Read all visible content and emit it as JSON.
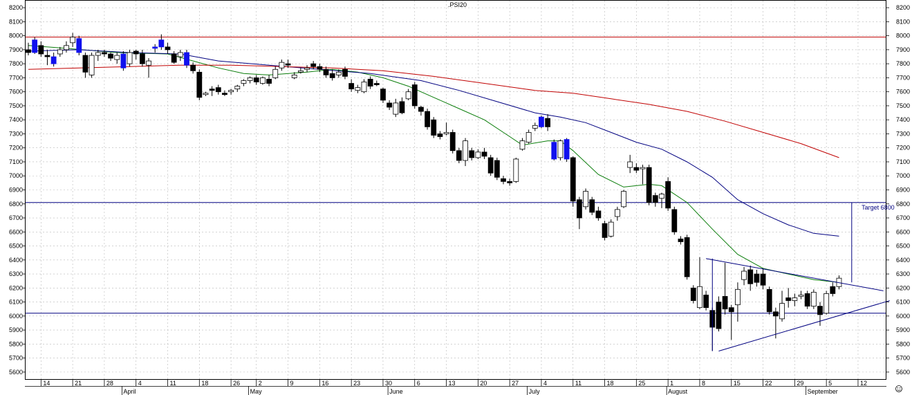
{
  "chart_data": {
    "type": "candlestick",
    "title": ".PSI20",
    "grid": true,
    "ylim": [
      5550,
      8250
    ],
    "y_ticks": [
      5600,
      5700,
      5800,
      5900,
      6000,
      6100,
      6200,
      6300,
      6400,
      6500,
      6600,
      6700,
      6800,
      6900,
      7000,
      7100,
      7200,
      7300,
      7400,
      7500,
      7600,
      7700,
      7800,
      7900,
      8000,
      8100,
      8200
    ],
    "x_tick_labels": [
      {
        "i": 2,
        "label": "14"
      },
      {
        "i": 7,
        "label": "21"
      },
      {
        "i": 12,
        "label": "28"
      },
      {
        "i": 17,
        "label": "4"
      },
      {
        "i": 22,
        "label": "11"
      },
      {
        "i": 27,
        "label": "18"
      },
      {
        "i": 32,
        "label": "26"
      },
      {
        "i": 36,
        "label": "2"
      },
      {
        "i": 41,
        "label": "9"
      },
      {
        "i": 46,
        "label": "16"
      },
      {
        "i": 51,
        "label": "23"
      },
      {
        "i": 56,
        "label": "30"
      },
      {
        "i": 61,
        "label": "6"
      },
      {
        "i": 66,
        "label": "13"
      },
      {
        "i": 71,
        "label": "20"
      },
      {
        "i": 76,
        "label": "27"
      },
      {
        "i": 81,
        "label": "4"
      },
      {
        "i": 86,
        "label": "11"
      },
      {
        "i": 91,
        "label": "18"
      },
      {
        "i": 96,
        "label": "25"
      },
      {
        "i": 101,
        "label": "1"
      },
      {
        "i": 106,
        "label": "8"
      },
      {
        "i": 111,
        "label": "15"
      },
      {
        "i": 116,
        "label": "22"
      },
      {
        "i": 121,
        "label": "29"
      },
      {
        "i": 126,
        "label": "5"
      },
      {
        "i": 131,
        "label": "12"
      }
    ],
    "month_labels": [
      {
        "i": 15,
        "label": "April"
      },
      {
        "i": 35,
        "label": "May"
      },
      {
        "i": 57,
        "label": "June"
      },
      {
        "i": 79,
        "label": "July"
      },
      {
        "i": 101,
        "label": "August"
      },
      {
        "i": 123,
        "label": "September"
      }
    ],
    "candles": [
      [
        0,
        7900,
        7950,
        7860,
        7880
      ],
      [
        1,
        7880,
        7990,
        7870,
        7970
      ],
      [
        2,
        7930,
        7960,
        7850,
        7870
      ],
      [
        3,
        7860,
        7900,
        7790,
        7850
      ],
      [
        4,
        7850,
        7880,
        7780,
        7800
      ],
      [
        5,
        7870,
        7920,
        7850,
        7900
      ],
      [
        6,
        7900,
        7960,
        7880,
        7930
      ],
      [
        7,
        7950,
        8020,
        7920,
        7990
      ],
      [
        8,
        7980,
        8000,
        7860,
        7880
      ],
      [
        9,
        7860,
        7880,
        7700,
        7740
      ],
      [
        10,
        7720,
        7880,
        7700,
        7860
      ],
      [
        11,
        7860,
        7900,
        7820,
        7880
      ],
      [
        12,
        7880,
        7900,
        7850,
        7870
      ],
      [
        13,
        7870,
        7880,
        7820,
        7840
      ],
      [
        14,
        7830,
        7880,
        7800,
        7860
      ],
      [
        15,
        7870,
        7890,
        7750,
        7770
      ],
      [
        16,
        7800,
        7900,
        7780,
        7880
      ],
      [
        17,
        7890,
        7900,
        7830,
        7870
      ],
      [
        18,
        7870,
        7900,
        7780,
        7800
      ],
      [
        19,
        7790,
        7840,
        7700,
        7820
      ],
      [
        20,
        7910,
        7940,
        7880,
        7920
      ],
      [
        21,
        7920,
        8010,
        7900,
        7970
      ],
      [
        22,
        7920,
        7950,
        7870,
        7900
      ],
      [
        23,
        7870,
        7890,
        7800,
        7810
      ],
      [
        24,
        7850,
        7900,
        7820,
        7880
      ],
      [
        25,
        7880,
        7900,
        7770,
        7790
      ],
      [
        26,
        7790,
        7810,
        7730,
        7750
      ],
      [
        27,
        7740,
        7760,
        7540,
        7560
      ],
      [
        28,
        7580,
        7600,
        7570,
        7590
      ],
      [
        29,
        7620,
        7640,
        7570,
        7610
      ],
      [
        30,
        7630,
        7650,
        7580,
        7600
      ],
      [
        31,
        7590,
        7610,
        7570,
        7580
      ],
      [
        32,
        7600,
        7620,
        7580,
        7610
      ],
      [
        33,
        7620,
        7650,
        7600,
        7640
      ],
      [
        34,
        7660,
        7690,
        7640,
        7680
      ],
      [
        35,
        7680,
        7710,
        7660,
        7700
      ],
      [
        36,
        7700,
        7720,
        7650,
        7670
      ],
      [
        37,
        7660,
        7710,
        7650,
        7700
      ],
      [
        38,
        7690,
        7720,
        7640,
        7660
      ],
      [
        39,
        7700,
        7780,
        7690,
        7760
      ],
      [
        40,
        7770,
        7830,
        7750,
        7810
      ],
      [
        41,
        7800,
        7830,
        7770,
        7790
      ],
      [
        42,
        7700,
        7740,
        7690,
        7720
      ],
      [
        43,
        7740,
        7770,
        7730,
        7750
      ],
      [
        44,
        7760,
        7790,
        7740,
        7770
      ],
      [
        45,
        7800,
        7820,
        7760,
        7780
      ],
      [
        46,
        7780,
        7800,
        7740,
        7760
      ],
      [
        47,
        7760,
        7780,
        7700,
        7720
      ],
      [
        48,
        7730,
        7760,
        7680,
        7700
      ],
      [
        49,
        7720,
        7760,
        7700,
        7740
      ],
      [
        50,
        7760,
        7780,
        7690,
        7710
      ],
      [
        51,
        7660,
        7690,
        7600,
        7620
      ],
      [
        52,
        7610,
        7650,
        7590,
        7630
      ],
      [
        53,
        7600,
        7690,
        7590,
        7670
      ],
      [
        54,
        7690,
        7710,
        7620,
        7640
      ],
      [
        55,
        7660,
        7680,
        7640,
        7650
      ],
      [
        56,
        7620,
        7630,
        7520,
        7540
      ],
      [
        57,
        7520,
        7540,
        7470,
        7490
      ],
      [
        58,
        7440,
        7550,
        7420,
        7520
      ],
      [
        59,
        7530,
        7560,
        7440,
        7450
      ],
      [
        60,
        7550,
        7620,
        7540,
        7600
      ],
      [
        61,
        7650,
        7670,
        7480,
        7500
      ],
      [
        62,
        7490,
        7500,
        7430,
        7460
      ],
      [
        63,
        7460,
        7480,
        7330,
        7350
      ],
      [
        64,
        7400,
        7420,
        7270,
        7290
      ],
      [
        65,
        7300,
        7320,
        7260,
        7280
      ],
      [
        66,
        7300,
        7380,
        7290,
        7310
      ],
      [
        67,
        7310,
        7330,
        7160,
        7180
      ],
      [
        68,
        7180,
        7200,
        7090,
        7110
      ],
      [
        69,
        7110,
        7270,
        7070,
        7250
      ],
      [
        70,
        7180,
        7200,
        7110,
        7130
      ],
      [
        71,
        7130,
        7190,
        7120,
        7170
      ],
      [
        72,
        7170,
        7200,
        7120,
        7140
      ],
      [
        73,
        7130,
        7150,
        7000,
        7020
      ],
      [
        74,
        7110,
        7130,
        6970,
        6990
      ],
      [
        75,
        6980,
        7000,
        6940,
        6960
      ],
      [
        76,
        6960,
        6980,
        6930,
        6950
      ],
      [
        77,
        6960,
        7130,
        6950,
        7120
      ],
      [
        78,
        7190,
        7270,
        7180,
        7250
      ],
      [
        79,
        7240,
        7330,
        7230,
        7310
      ],
      [
        80,
        7340,
        7380,
        7320,
        7360
      ],
      [
        81,
        7350,
        7430,
        7340,
        7420
      ],
      [
        82,
        7410,
        7440,
        7320,
        7350
      ],
      [
        83,
        7240,
        7260,
        7110,
        7120
      ],
      [
        84,
        7130,
        7260,
        7110,
        7250
      ],
      [
        85,
        7260,
        7270,
        7100,
        7120
      ],
      [
        86,
        7130,
        7140,
        6780,
        6820
      ],
      [
        87,
        6830,
        6850,
        6620,
        6700
      ],
      [
        88,
        6780,
        6910,
        6760,
        6890
      ],
      [
        89,
        6830,
        6850,
        6720,
        6740
      ],
      [
        90,
        6750,
        6780,
        6680,
        6700
      ],
      [
        91,
        6660,
        6680,
        6540,
        6560
      ],
      [
        92,
        6570,
        6690,
        6560,
        6670
      ],
      [
        93,
        6710,
        6780,
        6680,
        6760
      ],
      [
        94,
        6780,
        6900,
        6770,
        6890
      ],
      [
        95,
        7060,
        7150,
        7020,
        7100
      ],
      [
        96,
        7060,
        7090,
        7020,
        7040
      ],
      [
        97,
        7050,
        7080,
        6940,
        7060
      ],
      [
        98,
        7060,
        7080,
        6790,
        6810
      ],
      [
        99,
        6860,
        6880,
        6780,
        6810
      ],
      [
        100,
        6840,
        6880,
        6770,
        6870
      ],
      [
        101,
        6960,
        6990,
        6750,
        6770
      ],
      [
        102,
        6760,
        6780,
        6580,
        6600
      ],
      [
        103,
        6550,
        6570,
        6510,
        6530
      ],
      [
        104,
        6560,
        6580,
        6260,
        6280
      ],
      [
        105,
        6200,
        6220,
        6090,
        6110
      ],
      [
        106,
        6060,
        6420,
        6050,
        6210
      ],
      [
        107,
        6150,
        6180,
        6040,
        6060
      ],
      [
        108,
        6040,
        6060,
        5750,
        5920
      ],
      [
        109,
        6100,
        6140,
        5890,
        5910
      ],
      [
        110,
        6140,
        6380,
        6010,
        6050
      ],
      [
        111,
        6060,
        6080,
        5830,
        6030
      ],
      [
        112,
        6080,
        6240,
        5960,
        6190
      ],
      [
        113,
        6260,
        6350,
        6220,
        6320
      ],
      [
        114,
        6330,
        6360,
        6180,
        6230
      ],
      [
        115,
        6300,
        6330,
        6210,
        6240
      ],
      [
        116,
        6300,
        6340,
        6190,
        6220
      ],
      [
        117,
        6190,
        6210,
        6010,
        6030
      ],
      [
        118,
        6030,
        6060,
        5840,
        6000
      ],
      [
        119,
        5980,
        6180,
        5960,
        6090
      ],
      [
        120,
        6130,
        6200,
        6060,
        6110
      ],
      [
        121,
        6110,
        6160,
        6070,
        6130
      ],
      [
        122,
        6140,
        6180,
        6120,
        6150
      ],
      [
        123,
        6160,
        6180,
        6050,
        6070
      ],
      [
        124,
        6070,
        6190,
        6050,
        6170
      ],
      [
        125,
        6070,
        6100,
        5930,
        6010
      ],
      [
        126,
        6020,
        6180,
        6010,
        6160
      ],
      [
        127,
        6210,
        6240,
        6140,
        6160
      ],
      [
        128,
        6210,
        6290,
        6190,
        6270
      ]
    ],
    "candle_colors": {
      "up": "#ffffff",
      "down": "#000000",
      "highlight": "#1010ee"
    },
    "highlight_candles": [
      1,
      4,
      8,
      15,
      20,
      21,
      25,
      81,
      83,
      85
    ],
    "moving_averages": [
      {
        "color": "#0a7d0a",
        "points": [
          [
            0,
            7930
          ],
          [
            6,
            7910
          ],
          [
            14,
            7880
          ],
          [
            22,
            7870
          ],
          [
            26,
            7820
          ],
          [
            30,
            7770
          ],
          [
            34,
            7730
          ],
          [
            38,
            7720
          ],
          [
            44,
            7740
          ],
          [
            48,
            7760
          ],
          [
            52,
            7740
          ],
          [
            56,
            7700
          ],
          [
            60,
            7640
          ],
          [
            64,
            7560
          ],
          [
            68,
            7480
          ],
          [
            72,
            7400
          ],
          [
            76,
            7280
          ],
          [
            78,
            7220
          ],
          [
            82,
            7250
          ],
          [
            84,
            7250
          ],
          [
            86,
            7180
          ],
          [
            90,
            7010
          ],
          [
            94,
            6920
          ],
          [
            98,
            6940
          ],
          [
            100,
            6930
          ],
          [
            104,
            6810
          ],
          [
            108,
            6620
          ],
          [
            112,
            6440
          ],
          [
            116,
            6340
          ],
          [
            120,
            6300
          ],
          [
            124,
            6260
          ],
          [
            128,
            6240
          ]
        ]
      },
      {
        "color": "#000080",
        "points": [
          [
            0,
            7890
          ],
          [
            8,
            7900
          ],
          [
            16,
            7880
          ],
          [
            24,
            7870
          ],
          [
            30,
            7820
          ],
          [
            38,
            7790
          ],
          [
            46,
            7760
          ],
          [
            54,
            7730
          ],
          [
            62,
            7680
          ],
          [
            68,
            7610
          ],
          [
            74,
            7530
          ],
          [
            80,
            7450
          ],
          [
            84,
            7420
          ],
          [
            88,
            7380
          ],
          [
            92,
            7310
          ],
          [
            96,
            7240
          ],
          [
            100,
            7190
          ],
          [
            104,
            7100
          ],
          [
            108,
            6990
          ],
          [
            112,
            6830
          ],
          [
            116,
            6730
          ],
          [
            120,
            6650
          ],
          [
            124,
            6590
          ],
          [
            128,
            6570
          ]
        ]
      },
      {
        "color": "#c00000",
        "points": [
          [
            0,
            7760
          ],
          [
            8,
            7770
          ],
          [
            16,
            7780
          ],
          [
            24,
            7790
          ],
          [
            32,
            7790
          ],
          [
            40,
            7780
          ],
          [
            48,
            7770
          ],
          [
            56,
            7750
          ],
          [
            64,
            7710
          ],
          [
            72,
            7660
          ],
          [
            80,
            7610
          ],
          [
            86,
            7590
          ],
          [
            92,
            7550
          ],
          [
            98,
            7510
          ],
          [
            104,
            7460
          ],
          [
            110,
            7390
          ],
          [
            116,
            7310
          ],
          [
            122,
            7230
          ],
          [
            128,
            7130
          ]
        ]
      }
    ],
    "horizontal_lines": [
      {
        "y": 7990,
        "color": "#c00000"
      },
      {
        "y": 6810,
        "color": "#000080"
      },
      {
        "y": 6020,
        "color": "#000080"
      }
    ],
    "trend_lines": [
      {
        "from": [
          107,
          6410
        ],
        "to": [
          135,
          6180
        ],
        "color": "#000080"
      },
      {
        "from": [
          109,
          5750
        ],
        "to": [
          136,
          6110
        ],
        "color": "#000080"
      },
      {
        "from": [
          108,
          6410
        ],
        "to": [
          108,
          5750
        ],
        "color": "#000080"
      },
      {
        "from": [
          130,
          6240
        ],
        "to": [
          130,
          6810
        ],
        "color": "#000080"
      }
    ],
    "annotation": {
      "text": "Target 6800",
      "i": 132,
      "y": 6750,
      "color": "#000080"
    },
    "corner_icon": "smiley-icon"
  }
}
